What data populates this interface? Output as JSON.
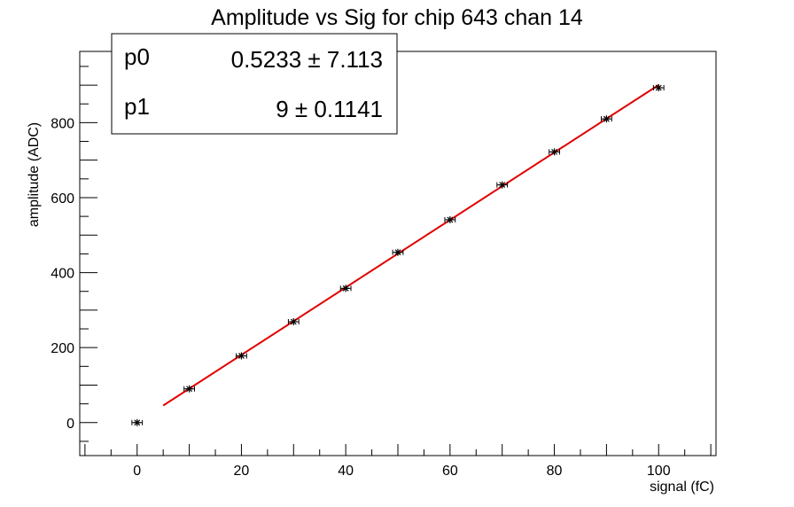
{
  "chart_data": {
    "type": "scatter",
    "title": "Amplitude vs Sig for chip 643 chan 14",
    "xlabel": "signal (fC)",
    "ylabel": "amplitude (ADC)",
    "xlim": [
      -11,
      111
    ],
    "ylim": [
      -88,
      990
    ],
    "x_ticks": [
      0,
      20,
      40,
      60,
      80,
      100
    ],
    "y_ticks": [
      0,
      200,
      400,
      600,
      800
    ],
    "grid": false,
    "series": [
      {
        "points": [
          {
            "x": 0,
            "y": 0
          },
          {
            "x": 10,
            "y": 90
          },
          {
            "x": 20,
            "y": 178
          },
          {
            "x": 30,
            "y": 269
          },
          {
            "x": 40,
            "y": 358
          },
          {
            "x": 50,
            "y": 454
          },
          {
            "x": 60,
            "y": 541
          },
          {
            "x": 70,
            "y": 634
          },
          {
            "x": 80,
            "y": 722
          },
          {
            "x": 90,
            "y": 810
          },
          {
            "x": 100,
            "y": 893
          }
        ],
        "x_error": 1,
        "color": "#000000"
      }
    ],
    "fit": {
      "x_range": [
        5,
        100
      ],
      "p0": 0.5233,
      "p1": 9,
      "color": "#e00000"
    },
    "stats_box": {
      "position": "top-left",
      "rows": [
        {
          "name": "p0",
          "value": "0.5233 ± 7.113"
        },
        {
          "name": "p1",
          "value": "9 ± 0.1141"
        }
      ]
    }
  }
}
